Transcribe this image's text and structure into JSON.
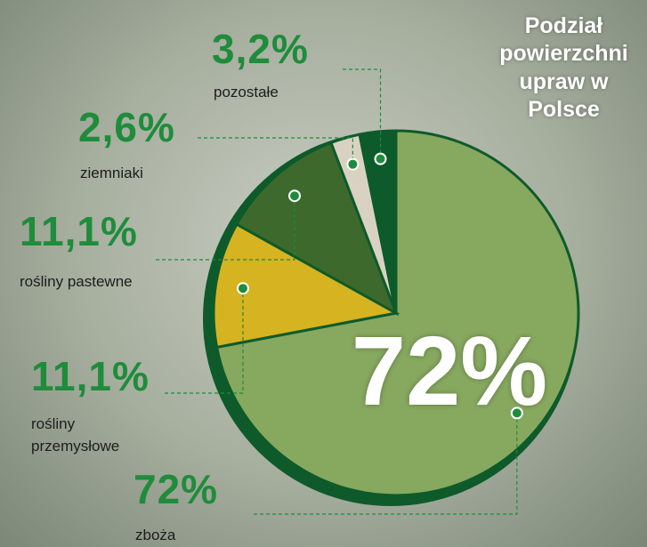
{
  "chart_data": {
    "type": "pie",
    "title": "Podział powierzchni upraw w Polsce",
    "categories": [
      "zboża",
      "rośliny przemysłowe",
      "rośliny pastewne",
      "ziemniaki",
      "pozostałe"
    ],
    "values": [
      72,
      11.1,
      11.1,
      2.6,
      3.2
    ],
    "value_labels": [
      "72%",
      "11,1%",
      "11,1%",
      "2,6%",
      "3,2%"
    ],
    "colors": [
      "#86a85f",
      "#d6b320",
      "#3d6a2c",
      "#d9d2c2",
      "#0d5a2b"
    ]
  }
}
